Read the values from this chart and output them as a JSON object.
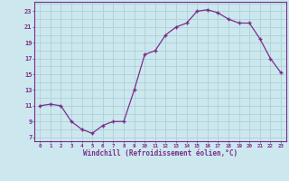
{
  "x": [
    0,
    1,
    2,
    3,
    4,
    5,
    6,
    7,
    8,
    9,
    10,
    11,
    12,
    13,
    14,
    15,
    16,
    17,
    18,
    19,
    20,
    21,
    22,
    23
  ],
  "y": [
    11,
    11.2,
    11,
    9,
    8,
    7.5,
    8.5,
    9,
    9,
    13,
    17.5,
    18,
    20,
    21,
    21.5,
    23,
    23.2,
    22.8,
    22,
    21.5,
    21.5,
    19.5,
    17,
    15.2
  ],
  "line_color": "#7b2d8b",
  "marker": "+",
  "bg_color": "#cce8ee",
  "grid_color": "#b0d4da",
  "axis_color": "#7b2d8b",
  "tick_color": "#7b2d8b",
  "xlabel": "Windchill (Refroidissement éolien,°C)",
  "ylabel_ticks": [
    7,
    9,
    11,
    13,
    15,
    17,
    19,
    21,
    23
  ],
  "xlim": [
    -0.5,
    23.5
  ],
  "ylim": [
    6.5,
    24.2
  ],
  "title": ""
}
